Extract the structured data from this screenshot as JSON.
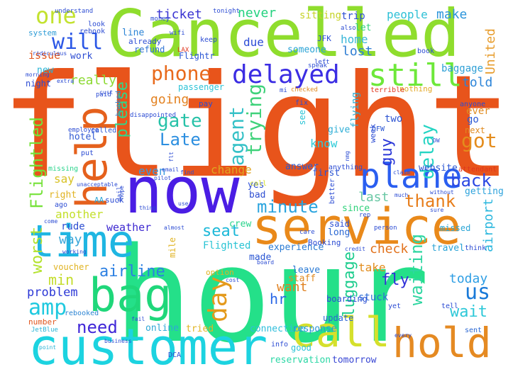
{
  "words": [
    {
      "text": "flight",
      "color": "#e8541b"
    },
    {
      "text": "hour",
      "color": "#24e089"
    },
    {
      "text": "Cancelled",
      "color": "#8fdd2d"
    },
    {
      "text": "now",
      "color": "#4a1de4"
    },
    {
      "text": "customer",
      "color": "#1cd3e0"
    },
    {
      "text": "service",
      "color": "#e9891a"
    },
    {
      "text": "time",
      "color": "#1fb6e2"
    },
    {
      "text": "bag",
      "color": "#1fd77a"
    },
    {
      "text": "help",
      "color": "#e5601c"
    },
    {
      "text": "hold",
      "color": "#e58a22"
    },
    {
      "text": "call",
      "color": "#d5e02c"
    },
    {
      "text": "plane",
      "color": "#2a5ef0"
    },
    {
      "text": "still",
      "color": "#6ee83a"
    },
    {
      "text": "delayed",
      "color": "#3b2de3"
    },
    {
      "text": "one",
      "color": "#c3e22f"
    },
    {
      "text": "will",
      "color": "#2b57e6"
    },
    {
      "text": "amp",
      "color": "#1fc9df"
    },
    {
      "text": "us",
      "color": "#1a7ad8"
    },
    {
      "text": "day",
      "color": "#e49a1c"
    },
    {
      "text": "phone",
      "color": "#e86a1c"
    },
    {
      "text": "gate",
      "color": "#27c2a8"
    },
    {
      "text": "agent",
      "color": "#36c1c7"
    },
    {
      "text": "trying",
      "color": "#3fd27a"
    },
    {
      "text": "delay",
      "color": "#25d4c3"
    },
    {
      "text": "got",
      "color": "#e48c1c"
    },
    {
      "text": "back",
      "color": "#2a48e3"
    },
    {
      "text": "thank",
      "color": "#e77d1a"
    },
    {
      "text": "minute",
      "color": "#2aa4de"
    },
    {
      "text": "waiting",
      "color": "#2ed6a1"
    },
    {
      "text": "luggage",
      "color": "#1ecd8e"
    },
    {
      "text": "Flightled",
      "color": "#76e23a"
    },
    {
      "text": "worst",
      "color": "#b3e22d"
    },
    {
      "text": "airline",
      "color": "#2b7fe2"
    },
    {
      "text": "need",
      "color": "#4027d8"
    },
    {
      "text": "wait",
      "color": "#2dc8d8"
    },
    {
      "text": "today",
      "color": "#2e9ee4"
    },
    {
      "text": "hr",
      "color": "#2a67e6"
    },
    {
      "text": "fly",
      "color": "#3131d8"
    },
    {
      "text": "want",
      "color": "#e0801f"
    },
    {
      "text": "seat",
      "color": "#1cb8d8"
    },
    {
      "text": "please",
      "color": "#2fd78c"
    },
    {
      "text": "really",
      "color": "#8cd932"
    },
    {
      "text": "going",
      "color": "#e38221"
    },
    {
      "text": "Late",
      "color": "#2d8fe0"
    },
    {
      "text": "change",
      "color": "#e0a521"
    },
    {
      "text": "even",
      "color": "#3a9be2"
    },
    {
      "text": "min",
      "color": "#c3dc2a"
    },
    {
      "text": "problem",
      "color": "#2c38d6"
    },
    {
      "text": "weather",
      "color": "#3d28d0"
    },
    {
      "text": "way",
      "color": "#39a6d9"
    },
    {
      "text": "ticket",
      "color": "#3a34d2"
    },
    {
      "text": "never",
      "color": "#24d27f"
    },
    {
      "text": "make",
      "color": "#2c95db"
    },
    {
      "text": "told",
      "color": "#2d85d9"
    },
    {
      "text": "due",
      "color": "#2c4cd6"
    },
    {
      "text": "lost",
      "color": "#2e7dd3"
    },
    {
      "text": "home",
      "color": "#3ab7d8"
    },
    {
      "text": "people",
      "color": "#2ec0d6"
    },
    {
      "text": "United",
      "color": "#e79c2c"
    },
    {
      "text": "baggage",
      "color": "#2fa0d6"
    },
    {
      "text": "nothing",
      "color": "#e3a828"
    },
    {
      "text": "know",
      "color": "#2ecbd8"
    },
    {
      "text": "guy",
      "color": "#2b38d8"
    },
    {
      "text": "two",
      "color": "#3157d3"
    },
    {
      "text": "last",
      "color": "#6ac8a5"
    },
    {
      "text": "check",
      "color": "#e2731e"
    },
    {
      "text": "take",
      "color": "#e28c1c"
    },
    {
      "text": "say",
      "color": "#d8c225"
    },
    {
      "text": "another",
      "color": "#c4e02c"
    },
    {
      "text": "airport",
      "color": "#2bb7de"
    },
    {
      "text": "getting",
      "color": "#2ea3dc"
    },
    {
      "text": "Flighted",
      "color": "#2ac4d4"
    },
    {
      "text": "stuck",
      "color": "#2d6dd6"
    },
    {
      "text": "tomorrow",
      "color": "#3a48d4"
    },
    {
      "text": "reservation",
      "color": "#2bd7a5"
    },
    {
      "text": "connection",
      "color": "#2fbedb"
    },
    {
      "text": "response",
      "color": "#2b95d6"
    },
    {
      "text": "experience",
      "color": "#2b7bd3"
    },
    {
      "text": "issue",
      "color": "#e2571e"
    },
    {
      "text": "system",
      "color": "#2e9cd6"
    },
    {
      "text": "line",
      "color": "#2c84d6"
    },
    {
      "text": "someone",
      "color": "#2aa3d6"
    },
    {
      "text": "ever",
      "color": "#e08c22"
    },
    {
      "text": "go",
      "color": "#2b58d4"
    },
    {
      "text": "next",
      "color": "#e08c22"
    },
    {
      "text": "flying",
      "color": "#2fb0d6"
    },
    {
      "text": "first",
      "color": "#2c56d3"
    },
    {
      "text": "website",
      "color": "#2b56d3"
    },
    {
      "text": "leave",
      "color": "#2a7ad4"
    },
    {
      "text": "staff",
      "color": "#e08a20"
    },
    {
      "text": "travel",
      "color": "#2aa3d6"
    },
    {
      "text": "boarding",
      "color": "#2a4ed3"
    },
    {
      "text": "made",
      "color": "#2a56d3"
    },
    {
      "text": "crew",
      "color": "#2ad48c"
    },
    {
      "text": "rude",
      "color": "#2e4ed1"
    },
    {
      "text": "missed",
      "color": "#2ba6d6"
    },
    {
      "text": "sitting",
      "color": "#c6d227"
    },
    {
      "text": "trip",
      "color": "#2c4fd3"
    },
    {
      "text": "let",
      "color": "#2ed17a"
    },
    {
      "text": "hotel",
      "color": "#2f58d3"
    },
    {
      "text": "give",
      "color": "#2eaed6"
    },
    {
      "text": "yes",
      "color": "#2c4ed3"
    },
    {
      "text": "bad",
      "color": "#2f4fd2"
    },
    {
      "text": "right",
      "color": "#e0b322"
    },
    {
      "text": "online",
      "color": "#2ea7d6"
    },
    {
      "text": "tried",
      "color": "#e1b524"
    },
    {
      "text": "update",
      "color": "#2c64d3"
    },
    {
      "text": "good",
      "color": "#2bc4d6"
    },
    {
      "text": "answer",
      "color": "#2a5bd3"
    },
    {
      "text": "since",
      "color": "#2fd27a"
    },
    {
      "text": "long",
      "color": "#2b68d3"
    },
    {
      "text": "said",
      "color": "#2d4fd3"
    },
    {
      "text": "work",
      "color": "#2c4cd3"
    },
    {
      "text": "new",
      "color": "#2ab4d6"
    },
    {
      "text": "night",
      "color": "#2c4cd3"
    },
    {
      "text": "refund",
      "color": "#2d73d3"
    },
    {
      "text": "passenger",
      "color": "#2cc3d6"
    },
    {
      "text": "Flightr",
      "color": "#2b57d3"
    },
    {
      "text": "attendant",
      "color": "#e0361e"
    },
    {
      "text": "number",
      "color": "#e0561e"
    },
    {
      "text": "voucher",
      "color": "#e0b322"
    },
    {
      "text": "rebooked",
      "color": "#2c84d3"
    },
    {
      "text": "JFK",
      "color": "#2c4cd3"
    },
    {
      "text": "sent",
      "color": "#2b68d3"
    },
    {
      "text": "yet",
      "color": "#2c4cd3"
    },
    {
      "text": "mile",
      "color": "#e0b322"
    },
    {
      "text": "option",
      "color": "#e0b322"
    },
    {
      "text": "DFW",
      "color": "#2b57d3"
    },
    {
      "text": "week",
      "color": "#2c4cd3"
    },
    {
      "text": "see",
      "color": "#2bc4d6"
    },
    {
      "text": "call",
      "color": "#d5e02c"
    },
    {
      "text": "pay",
      "color": "#2c4cd3"
    },
    {
      "text": "put",
      "color": "#2c4cd3"
    },
    {
      "text": "called",
      "color": "#2b57d3"
    },
    {
      "text": "suck",
      "color": "#2c4cd3"
    },
    {
      "text": "AA",
      "color": "#2ba6d6"
    },
    {
      "text": "fix",
      "color": "#2c4cd3"
    },
    {
      "text": "anyone",
      "color": "#2c4cd3"
    },
    {
      "text": "booked",
      "color": "#2c84d3"
    },
    {
      "text": "missing",
      "color": "#2ad48c"
    },
    {
      "text": "ago",
      "color": "#2c4cd3"
    },
    {
      "text": "keep",
      "color": "#2c4cd3"
    },
    {
      "text": "already",
      "color": "#2c4cd3"
    },
    {
      "text": "look",
      "color": "#2c4cd3"
    },
    {
      "text": "rebook",
      "color": "#2c4cd3"
    },
    {
      "text": "LAX",
      "color": "#e0361e"
    },
    {
      "text": "book",
      "color": "#2c4cd3"
    },
    {
      "text": "also",
      "color": "#2c4cd3"
    },
    {
      "text": "tonight",
      "color": "#2c4cd3"
    },
    {
      "text": "understand",
      "color": "#2c4cd3"
    },
    {
      "text": "money",
      "color": "#2c4cd3"
    },
    {
      "text": "wifi",
      "color": "#2c4cd3"
    },
    {
      "text": "ridiculous",
      "color": "#2c4cd3"
    },
    {
      "text": "paid",
      "color": "#2c4cd3"
    },
    {
      "text": "employee",
      "color": "#2c4cd3"
    },
    {
      "text": "disappointed",
      "color": "#2c4cd3"
    },
    {
      "text": "terrible",
      "color": "#e0361e"
    },
    {
      "text": "checked",
      "color": "#e08a20"
    },
    {
      "text": "left",
      "color": "#2c4cd3"
    },
    {
      "text": "speak",
      "color": "#2c4cd3"
    },
    {
      "text": "rep",
      "color": "#2c4cd3"
    },
    {
      "text": "person",
      "color": "#2c4cd3"
    },
    {
      "text": "think",
      "color": "#2c4cd3"
    },
    {
      "text": "tell",
      "color": "#2c4cd3"
    },
    {
      "text": "every",
      "color": "#2c4cd3"
    },
    {
      "text": "business",
      "color": "#2c4cd3"
    },
    {
      "text": "DCA",
      "color": "#2c4cd3"
    },
    {
      "text": "info",
      "color": "#2c4cd3"
    },
    {
      "text": "JetBlue",
      "color": "#2ab4d6"
    },
    {
      "text": "point",
      "color": "#2ab4d6"
    },
    {
      "text": "care",
      "color": "#2c4cd3"
    },
    {
      "text": "unacceptable",
      "color": "#2c4cd3"
    },
    {
      "text": "come",
      "color": "#2c4cd3"
    },
    {
      "text": "extra",
      "color": "#2c4cd3"
    },
    {
      "text": "morning",
      "color": "#2c4cd3"
    },
    {
      "text": "Booking",
      "color": "#2c4cd3"
    },
    {
      "text": "without",
      "color": "#2c4cd3"
    },
    {
      "text": "much",
      "color": "#2c4cd3"
    },
    {
      "text": "claim",
      "color": "#2c4cd3"
    },
    {
      "text": "sure",
      "color": "#2c4cd3"
    },
    {
      "text": "email",
      "color": "#2c4cd3"
    },
    {
      "text": "thing",
      "color": "#2c4cd3"
    },
    {
      "text": "use",
      "color": "#2c4cd3"
    },
    {
      "text": "almost",
      "color": "#2c4cd3"
    },
    {
      "text": "working",
      "color": "#2c4cd3"
    },
    {
      "text": "board",
      "color": "#2c4cd3"
    },
    {
      "text": "credit",
      "color": "#2c4cd3"
    },
    {
      "text": "cost",
      "color": "#2c4cd3"
    },
    {
      "text": "fail",
      "color": "#2c4cd3"
    },
    {
      "text": "pilot",
      "color": "#2c4cd3"
    },
    {
      "text": "find",
      "color": "#2c4cd3"
    },
    {
      "text": "flt",
      "color": "#2c4cd3"
    },
    {
      "text": "DW",
      "color": "#2c4cd3"
    },
    {
      "text": "nmg",
      "color": "#2c4cd3"
    },
    {
      "text": "mi",
      "color": "#2c4cd3"
    },
    {
      "text": "cust",
      "color": "#2c4cd3"
    },
    {
      "text": "hope",
      "color": "#2c4cd3"
    },
    {
      "text": "anything",
      "color": "#2c4cd3"
    },
    {
      "text": "better",
      "color": "#2c4cd3"
    },
    {
      "text": "mail",
      "color": "#2c4cd3"
    }
  ]
}
